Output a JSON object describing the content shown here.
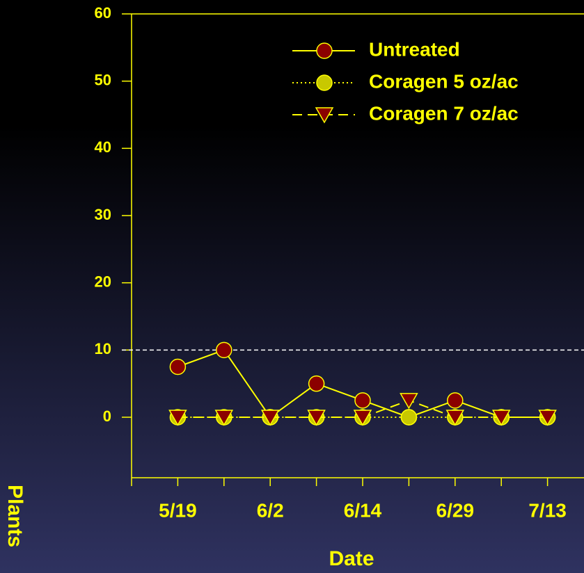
{
  "chart_data": {
    "type": "line",
    "x_label": "Date",
    "y_label": "Plants",
    "categories": [
      "5/19",
      null,
      "6/2",
      null,
      "6/14",
      null,
      "6/29",
      null,
      "7/13"
    ],
    "series": [
      {
        "name": "Untreated",
        "color": "#8b0000",
        "line_color": "#ffff00",
        "line_style": "solid",
        "marker": "circle",
        "values": [
          7.5,
          10,
          0,
          5,
          2.5,
          0,
          2.5,
          0,
          0
        ]
      },
      {
        "name": "Coragen 5 oz/ac",
        "color": "#c8c800",
        "line_color": "#ffff00",
        "line_style": "dotted",
        "marker": "circle",
        "values": [
          0,
          0,
          0,
          0,
          0,
          0,
          0,
          0,
          0
        ]
      },
      {
        "name": "Coragen 7 oz/ac",
        "color": "#8b0000",
        "line_color": "#ffff00",
        "line_style": "dashed",
        "marker": "triangle",
        "values": [
          0,
          0,
          0,
          0,
          0,
          2.5,
          0,
          0,
          0
        ]
      }
    ],
    "reference_line": 10,
    "ylim": [
      -9,
      60
    ],
    "yticks": [
      0,
      10,
      20,
      30,
      40,
      50,
      60
    ],
    "text_color": "#ffff00"
  }
}
